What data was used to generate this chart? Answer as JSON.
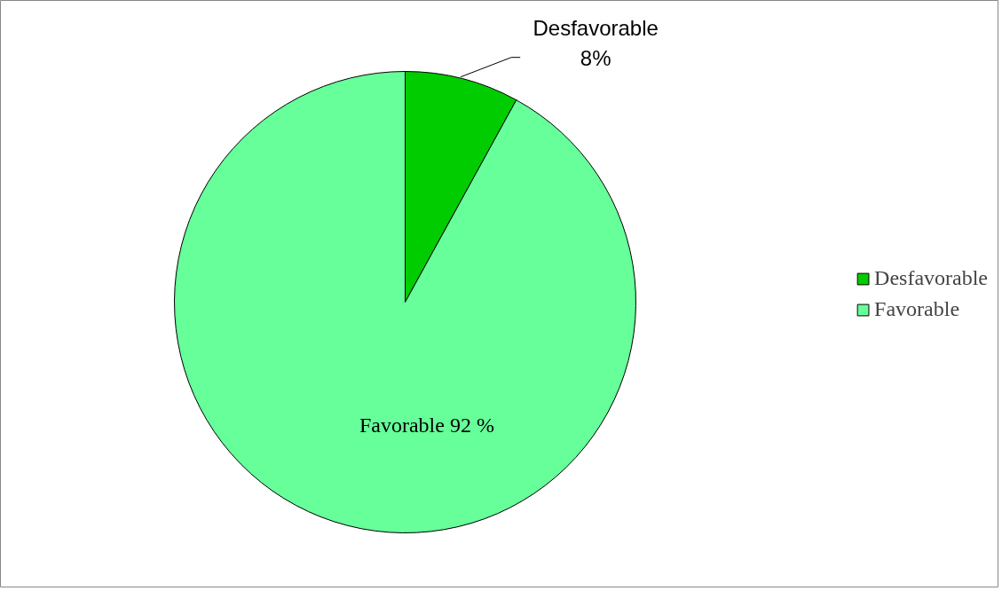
{
  "chart_data": {
    "type": "pie",
    "categories": [
      "Desfavorable",
      "Favorable"
    ],
    "values": [
      8,
      92
    ],
    "colors": [
      "#00cc00",
      "#66ff99"
    ],
    "value_labels": [
      "Desfavorable\n8%",
      "Favorable 92 %"
    ],
    "legend": "right"
  }
}
